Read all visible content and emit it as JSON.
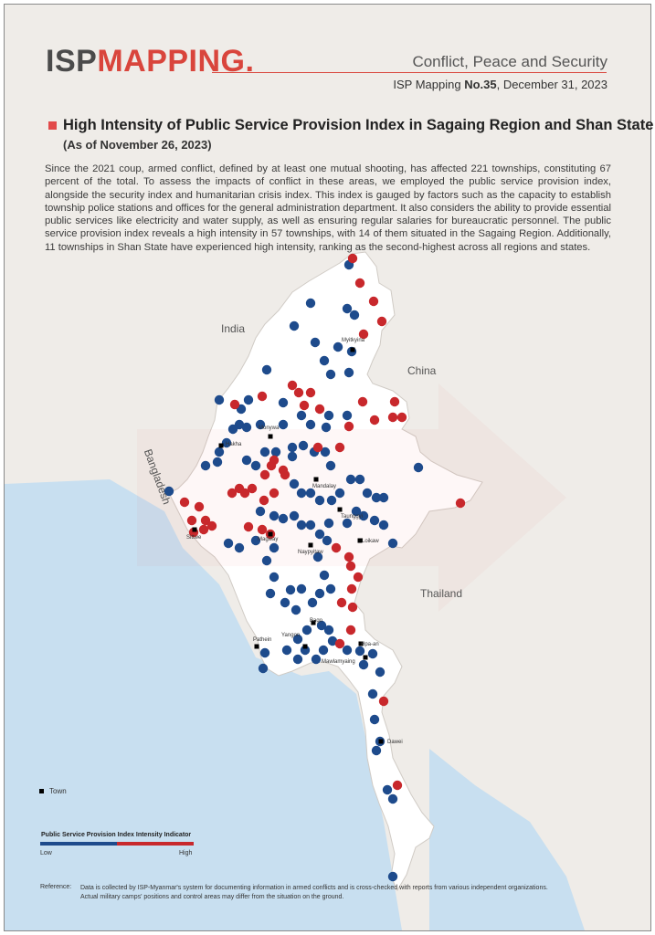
{
  "header": {
    "logo_isp": "ISP",
    "logo_mapping": "MAPPING",
    "logo_dot": ".",
    "series": "Conflict, Peace and Security",
    "issue_prefix": "ISP Mapping ",
    "issue_no": "No.35",
    "issue_date": ", December 31, 2023"
  },
  "title": "High Intensity of Public Service Provision Index in Sagaing Region and Shan State",
  "subtitle": "(As of November 26, 2023)",
  "body": "Since the 2021 coup, armed conflict, defined by at least one mutual shooting, has affected 221 townships, constituting 67 percent of the total. To assess the impacts of conflict in these areas, we employed the public service provision index, alongside the security index and humanitarian crisis index. This index is gauged by factors such as the capacity to establish township police stations and offices for the general administration department. It also considers the ability to provide essential public services like electricity and water supply, as well as ensuring regular salaries for bureaucratic personnel. The public service provision index reveals a high intensity in 57 townships, with 14 of them situated in the Sagaing Region. Additionally, 11 townships in Shan State have experienced high intensity, ranking as the second-highest across all regions and states.",
  "map": {
    "countries": [
      "India",
      "China",
      "Bangladesh",
      "Thailand"
    ],
    "towns": [
      "Myitkyina",
      "Monywa",
      "Hakha",
      "Mandalay",
      "Taunggyi",
      "Sittwe",
      "Magway",
      "Loikaw",
      "Naypyitaw",
      "Bago",
      "Yangon",
      "Pathein",
      "Hpa-an",
      "Mawlamyaing",
      "Dawei"
    ],
    "colors": {
      "low": "#1e4b8c",
      "high": "#c8282c",
      "land": "#ffffff",
      "neighbor": "#ebe7e2",
      "sea": "#c8dff0"
    }
  },
  "legend": {
    "town": "Town",
    "indicator_title": "Public Service Provision Index Intensity Indicator",
    "low": "Low",
    "high": "High"
  },
  "reference": {
    "label": "Reference:",
    "line1": "Data is collected by ISP-Myanmar's system for documenting information in armed conflicts and is cross-checked with reports from various independent organizations.",
    "line2": "Actual military camps' positions and control areas may differ from the situation on the ground."
  }
}
